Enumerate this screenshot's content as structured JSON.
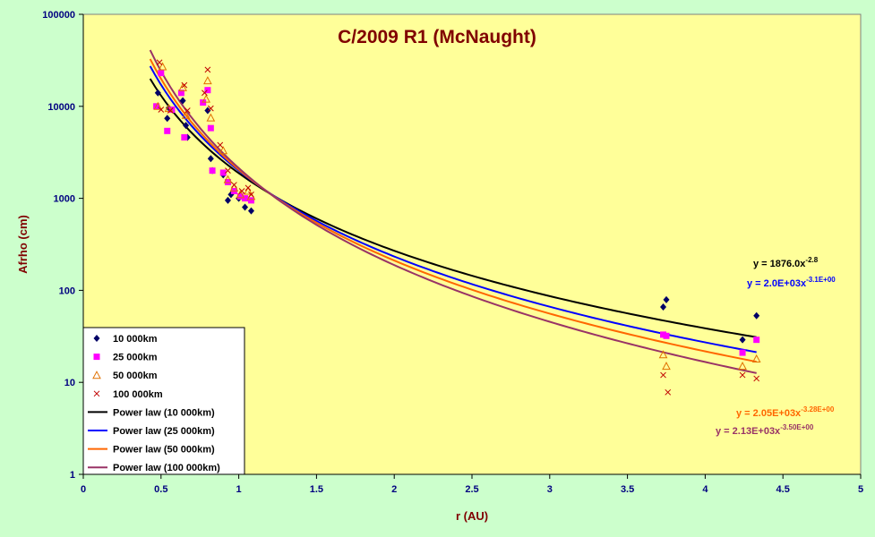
{
  "chart_data": {
    "type": "scatter",
    "title": "C/2009 R1 (McNaught)",
    "xlabel": "r (AU)",
    "ylabel": "Afrho (cm)",
    "xlim": [
      0,
      5
    ],
    "ylim": [
      1,
      100000
    ],
    "yscale": "log",
    "xticks": [
      "0",
      "0.5",
      "1",
      "1.5",
      "2",
      "2.5",
      "3",
      "3.5",
      "4",
      "4.5",
      "5"
    ],
    "yticks": [
      "1",
      "10",
      "100",
      "1000",
      "10000",
      "100000"
    ],
    "grid": false,
    "legend_position": "bottom-left",
    "colors": {
      "background": "#ccffcc",
      "plot_area": "#ffff99",
      "axis_text": "#000080",
      "title_text": "#800000"
    },
    "series": [
      {
        "name": "10 000km",
        "kind": "scatter",
        "marker": "diamond",
        "color": "#000066",
        "points": [
          [
            0.48,
            14000
          ],
          [
            0.54,
            7400
          ],
          [
            0.55,
            9600
          ],
          [
            0.64,
            11500
          ],
          [
            0.66,
            6200
          ],
          [
            0.67,
            4600
          ],
          [
            0.8,
            9000
          ],
          [
            0.82,
            2700
          ],
          [
            0.83,
            2000
          ],
          [
            0.9,
            1800
          ],
          [
            0.93,
            950
          ],
          [
            0.95,
            1100
          ],
          [
            1.0,
            1000
          ],
          [
            1.04,
            800
          ],
          [
            1.08,
            730
          ],
          [
            3.73,
            66
          ],
          [
            3.75,
            79
          ],
          [
            4.24,
            29
          ],
          [
            4.33,
            53
          ]
        ]
      },
      {
        "name": "25 000km",
        "kind": "scatter",
        "marker": "square",
        "color": "#ff00ff",
        "points": [
          [
            0.47,
            10000
          ],
          [
            0.5,
            23000
          ],
          [
            0.54,
            5400
          ],
          [
            0.57,
            9200
          ],
          [
            0.63,
            14000
          ],
          [
            0.65,
            4600
          ],
          [
            0.77,
            11000
          ],
          [
            0.8,
            15000
          ],
          [
            0.82,
            5800
          ],
          [
            0.83,
            2000
          ],
          [
            0.9,
            1900
          ],
          [
            0.93,
            1500
          ],
          [
            0.97,
            1200
          ],
          [
            1.01,
            1050
          ],
          [
            1.04,
            1000
          ],
          [
            1.08,
            950
          ],
          [
            3.73,
            33
          ],
          [
            3.75,
            32
          ],
          [
            4.24,
            21
          ],
          [
            4.33,
            29
          ]
        ]
      },
      {
        "name": "50 000km",
        "kind": "scatter",
        "marker": "triangle",
        "color": "#e07000",
        "points": [
          [
            0.48,
            10000
          ],
          [
            0.51,
            27000
          ],
          [
            0.55,
            9500
          ],
          [
            0.64,
            16000
          ],
          [
            0.66,
            8000
          ],
          [
            0.79,
            12000
          ],
          [
            0.8,
            19000
          ],
          [
            0.82,
            7500
          ],
          [
            0.9,
            3300
          ],
          [
            0.93,
            1600
          ],
          [
            0.97,
            1300
          ],
          [
            1.01,
            1100
          ],
          [
            1.06,
            1200
          ],
          [
            1.08,
            1050
          ],
          [
            3.73,
            20
          ],
          [
            3.75,
            15
          ],
          [
            4.24,
            15
          ],
          [
            4.33,
            18
          ]
        ]
      },
      {
        "name": "100 000km",
        "kind": "scatter",
        "marker": "x",
        "color": "#c00000",
        "points": [
          [
            0.49,
            30000
          ],
          [
            0.5,
            9200
          ],
          [
            0.56,
            9000
          ],
          [
            0.65,
            17000
          ],
          [
            0.67,
            9000
          ],
          [
            0.78,
            14000
          ],
          [
            0.8,
            25000
          ],
          [
            0.82,
            9500
          ],
          [
            0.88,
            3800
          ],
          [
            0.93,
            2000
          ],
          [
            0.97,
            1400
          ],
          [
            1.02,
            1200
          ],
          [
            1.06,
            1300
          ],
          [
            1.08,
            1100
          ],
          [
            3.73,
            12
          ],
          [
            3.76,
            7.8
          ],
          [
            4.24,
            12
          ],
          [
            4.33,
            11
          ]
        ]
      },
      {
        "name": "Power law (10 000km)",
        "kind": "fit",
        "color": "#000000",
        "coefficient": 1876.0,
        "exponent": -2.8,
        "x_range": [
          0.43,
          4.33
        ]
      },
      {
        "name": "Power law (25 000km)",
        "kind": "fit",
        "color": "#0000ff",
        "coefficient": 2000,
        "exponent": -3.1,
        "x_range": [
          0.43,
          4.33
        ]
      },
      {
        "name": "Power law (50 000km)",
        "kind": "fit",
        "color": "#ff6600",
        "coefficient": 2050,
        "exponent": -3.28,
        "x_range": [
          0.43,
          4.33
        ]
      },
      {
        "name": "Power law (100 000km)",
        "kind": "fit",
        "color": "#993366",
        "coefficient": 2130,
        "exponent": -3.5,
        "x_range": [
          0.43,
          4.33
        ]
      }
    ],
    "annotations": [
      {
        "base": "y = 1876.0x",
        "sup": "-2.8",
        "color": "#000000"
      },
      {
        "base": "y = 2.0E+03x",
        "sup": "-3.1E+00",
        "color": "#0000ff"
      },
      {
        "base": "y = 2.05E+03x",
        "sup": "-3.28E+00",
        "color": "#ff6600"
      },
      {
        "base": "y = 2.13E+03x",
        "sup": "-3.50E+00",
        "color": "#993366"
      }
    ]
  }
}
